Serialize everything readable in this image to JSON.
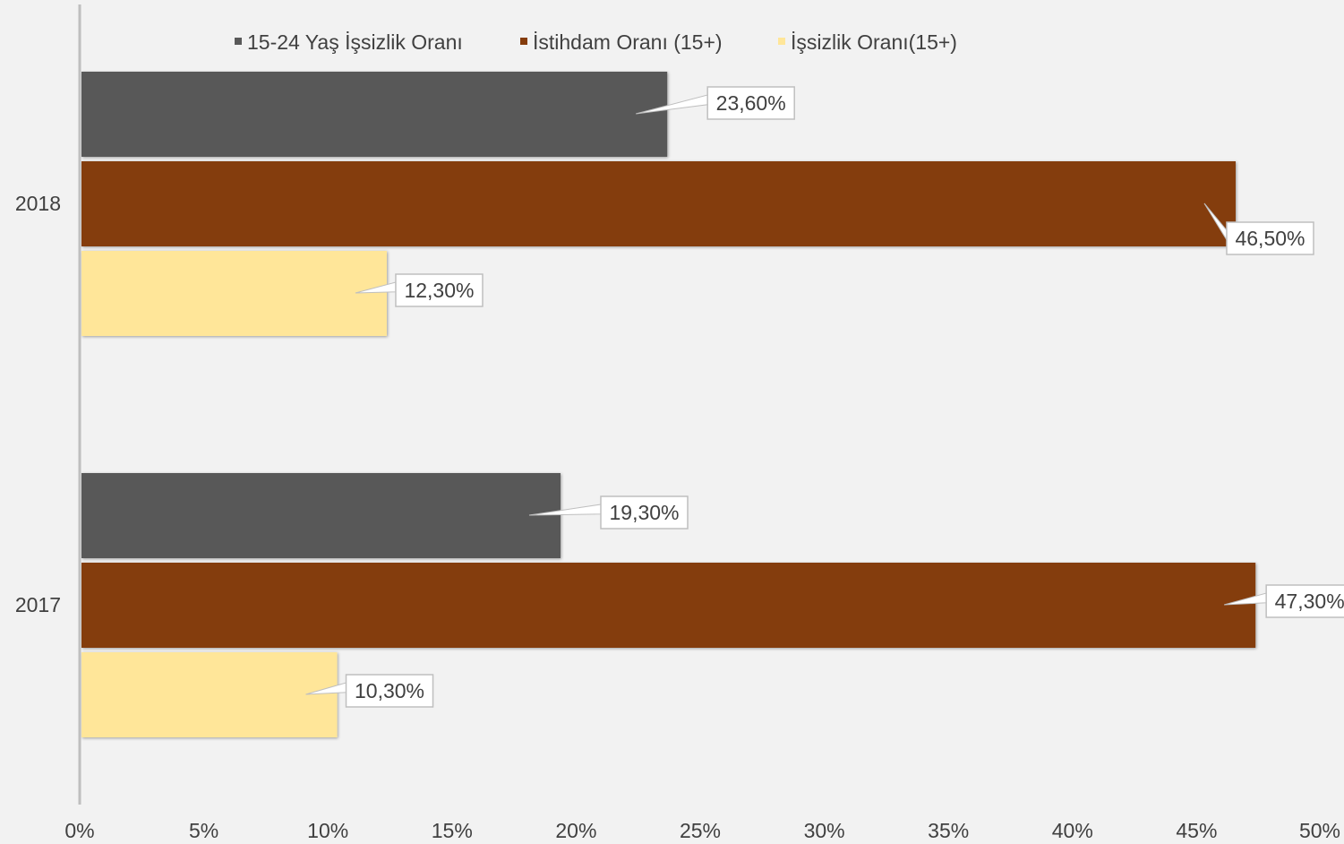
{
  "chart_data": {
    "type": "bar",
    "orientation": "horizontal",
    "categories": [
      "2018",
      "2017"
    ],
    "series": [
      {
        "name": "15-24 Yaş İşsizlik Oranı",
        "color": "#595959",
        "values": [
          23.6,
          19.3
        ],
        "labels": [
          "23,60%",
          "19,30%"
        ]
      },
      {
        "name": "İstihdam Oranı (15+)",
        "color": "#843c0c",
        "values": [
          46.5,
          47.3
        ],
        "labels": [
          "46,50%",
          "47,30%"
        ]
      },
      {
        "name": "İşsizlik Oranı(15+)",
        "color": "#ffe699",
        "values": [
          12.3,
          10.3
        ],
        "labels": [
          "12,30%",
          "10,30%"
        ]
      }
    ],
    "xlim": [
      0,
      50
    ],
    "xticks": [
      "0%",
      "5%",
      "10%",
      "15%",
      "20%",
      "25%",
      "30%",
      "35%",
      "40%",
      "45%",
      "50%"
    ],
    "legend_position": "top",
    "grid": false,
    "background": "#f2f2f2"
  }
}
